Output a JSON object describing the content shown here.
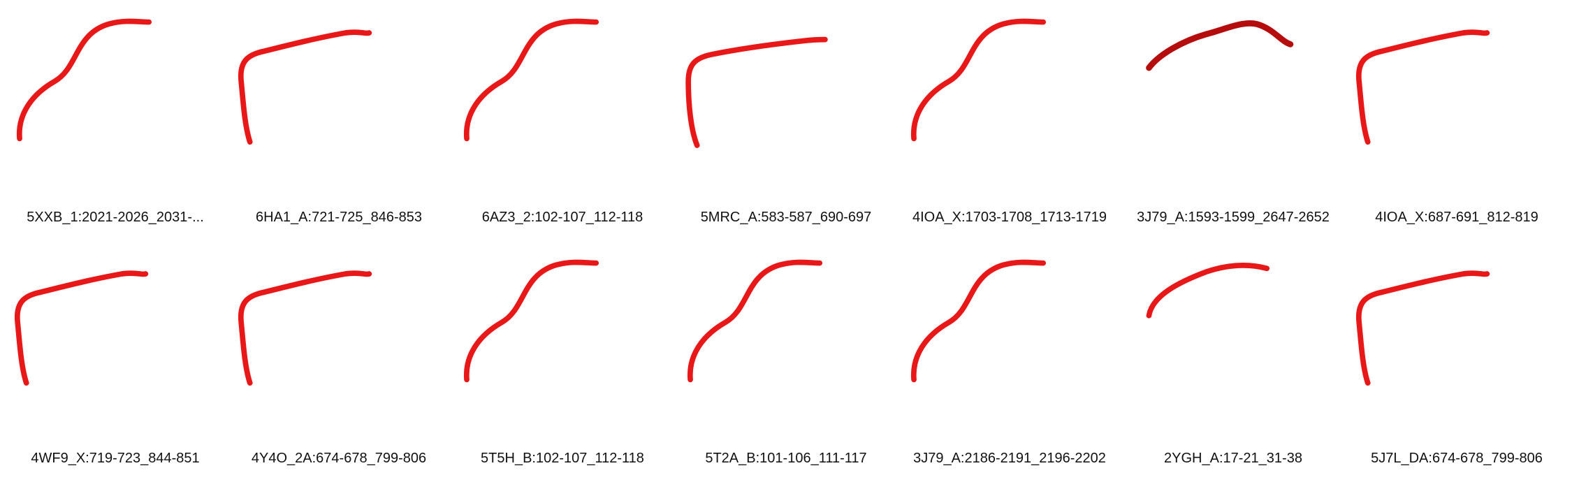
{
  "panels": [
    {
      "id": "p1",
      "label": "5XXB_1:2021-2026_2031-...",
      "shape": "A"
    },
    {
      "id": "p2",
      "label": "6HA1_A:721-725_846-853",
      "shape": "B"
    },
    {
      "id": "p3",
      "label": "6AZ3_2:102-107_112-118",
      "shape": "A"
    },
    {
      "id": "p4",
      "label": "5MRC_A:583-587_690-697",
      "shape": "C"
    },
    {
      "id": "p5",
      "label": "4IOA_X:1703-1708_1713-1719",
      "shape": "A"
    },
    {
      "id": "p6",
      "label": "3J79_A:1593-1599_2647-2652",
      "shape": "D"
    },
    {
      "id": "p7",
      "label": "4IOA_X:687-691_812-819",
      "shape": "B"
    },
    {
      "id": "p8",
      "label": "4WF9_X:719-723_844-851",
      "shape": "B"
    },
    {
      "id": "p9",
      "label": "4Y4O_2A:674-678_799-806",
      "shape": "B"
    },
    {
      "id": "p10",
      "label": "5T5H_B:102-107_112-118",
      "shape": "A"
    },
    {
      "id": "p11",
      "label": "5T2A_B:101-106_111-117",
      "shape": "A"
    },
    {
      "id": "p12",
      "label": "3J79_A:2186-2191_2196-2202",
      "shape": "A"
    },
    {
      "id": "p13",
      "label": "2YGH_A:17-21_31-38",
      "shape": "E"
    },
    {
      "id": "p14",
      "label": "5J7L_DA:674-678_799-806",
      "shape": "B"
    }
  ],
  "colors": {
    "backbone": "#e81818",
    "backbone_dark": "#b50d0d",
    "rung": "#dd1515",
    "faded": "#ee7070"
  }
}
